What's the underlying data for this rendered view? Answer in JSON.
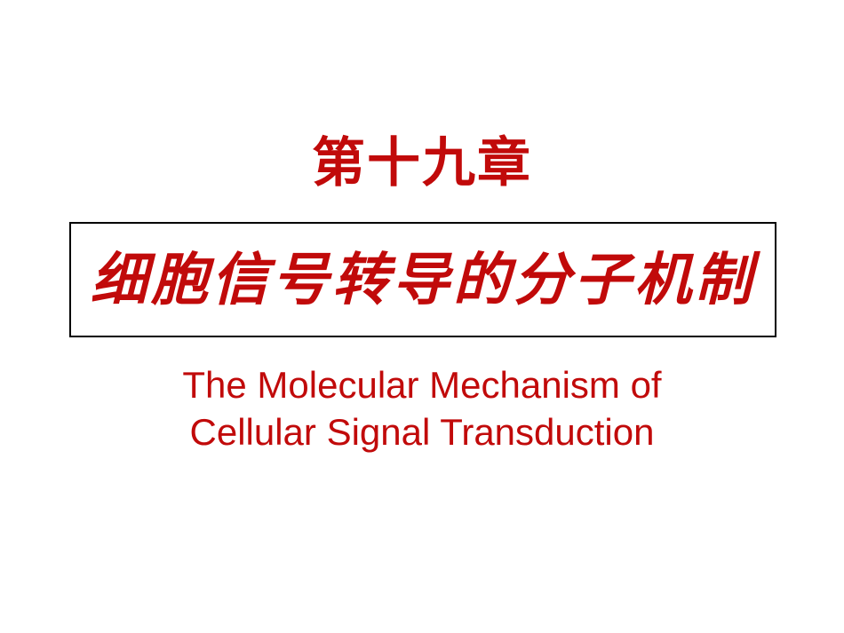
{
  "colors": {
    "primary": "#c10a0a",
    "border": "#000000",
    "bg": "#ffffff"
  },
  "chapter": "第十九章",
  "title_cn": "细胞信号转导的分子机制",
  "subtitle_line1": "The Molecular Mechanism of",
  "subtitle_line2": "Cellular Signal Transduction",
  "typography": {
    "chapter_fontsize": 60,
    "title_fontsize": 64,
    "subtitle_fontsize": 42
  }
}
